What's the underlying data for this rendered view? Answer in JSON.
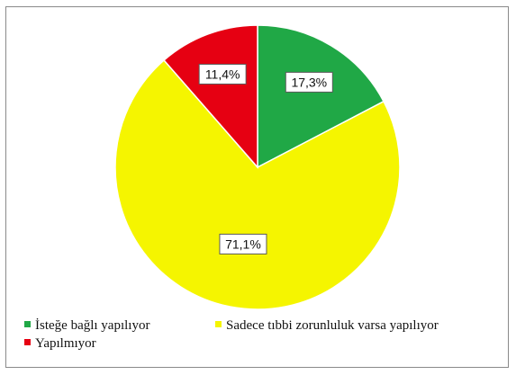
{
  "chart_data": {
    "type": "pie",
    "title": "",
    "slices": [
      {
        "label": "İsteğe bağlı yapılıyor",
        "value": 17.3,
        "display": "17,3%",
        "color": "#20a846"
      },
      {
        "label": "Sadece tıbbi zorunluluk varsa yapılıyor",
        "value": 71.1,
        "display": "71,1%",
        "color": "#f5f500"
      },
      {
        "label": "Yapılmıyor",
        "value": 11.4,
        "display": "11,4%",
        "color": "#e60012"
      }
    ],
    "start_angle_deg": 0,
    "direction": "clockwise",
    "legend_position": "bottom-left"
  }
}
